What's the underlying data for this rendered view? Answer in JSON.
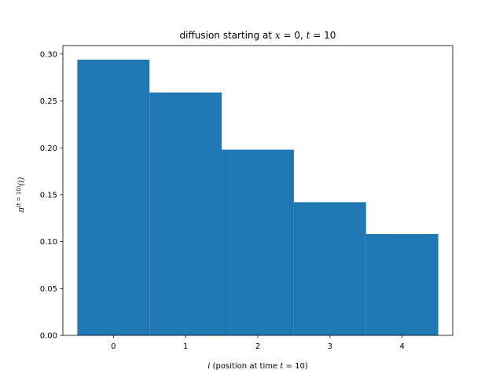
{
  "chart_data": {
    "type": "bar",
    "title": {
      "prefix": "diffusion starting at ",
      "var_x": "x",
      "eq0": " = 0,  ",
      "var_t": "t",
      "eq10": " = 10"
    },
    "xlabel": {
      "var": "i",
      "text": " (position at time ",
      "var_t": "t",
      "eq": " =  10)"
    },
    "ylabel": {
      "pi": "π",
      "sup": "(t = 10)",
      "arg": "(i)"
    },
    "categories": [
      "0",
      "1",
      "2",
      "3",
      "4"
    ],
    "x": [
      0,
      1,
      2,
      3,
      4
    ],
    "values": [
      0.294,
      0.259,
      0.198,
      0.142,
      0.108
    ],
    "bar_width": 1.0,
    "xlim": [
      -0.7,
      4.7
    ],
    "ylim": [
      0,
      0.309
    ],
    "yticks": [
      0.0,
      0.05,
      0.1,
      0.15,
      0.2,
      0.25,
      0.3
    ],
    "ytick_labels": [
      "0.00",
      "0.05",
      "0.10",
      "0.15",
      "0.20",
      "0.25",
      "0.30"
    ],
    "bar_color": "#1f77b4",
    "grid": false,
    "legend": "none"
  }
}
